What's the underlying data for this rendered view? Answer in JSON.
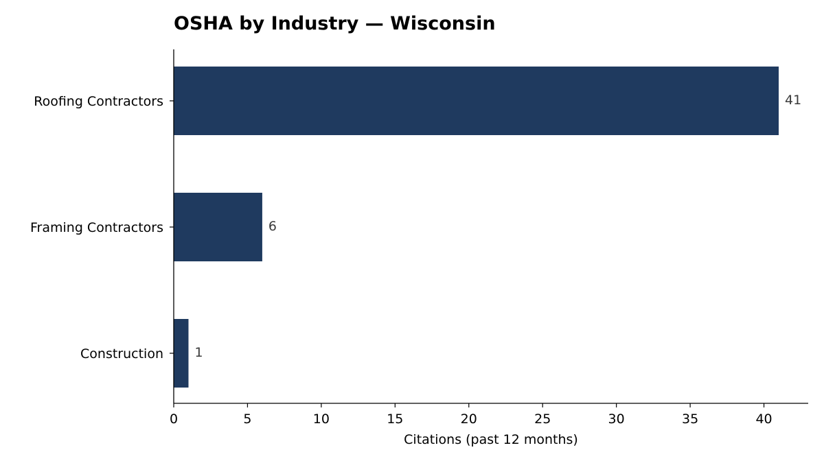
{
  "chart_data": {
    "type": "bar",
    "orientation": "horizontal",
    "title": "OSHA by Industry — Wisconsin",
    "xlabel": "Citations (past 12 months)",
    "ylabel": "",
    "categories": [
      "Roofing Contractors",
      "Framing Contractors",
      "Construction"
    ],
    "values": [
      41,
      6,
      1
    ],
    "xlim": [
      0,
      43
    ],
    "xticks": [
      0,
      5,
      10,
      15,
      20,
      25,
      30,
      35,
      40
    ],
    "grid": false,
    "legend": "none",
    "bar_color": "#1f3a5f",
    "value_labels": true
  }
}
